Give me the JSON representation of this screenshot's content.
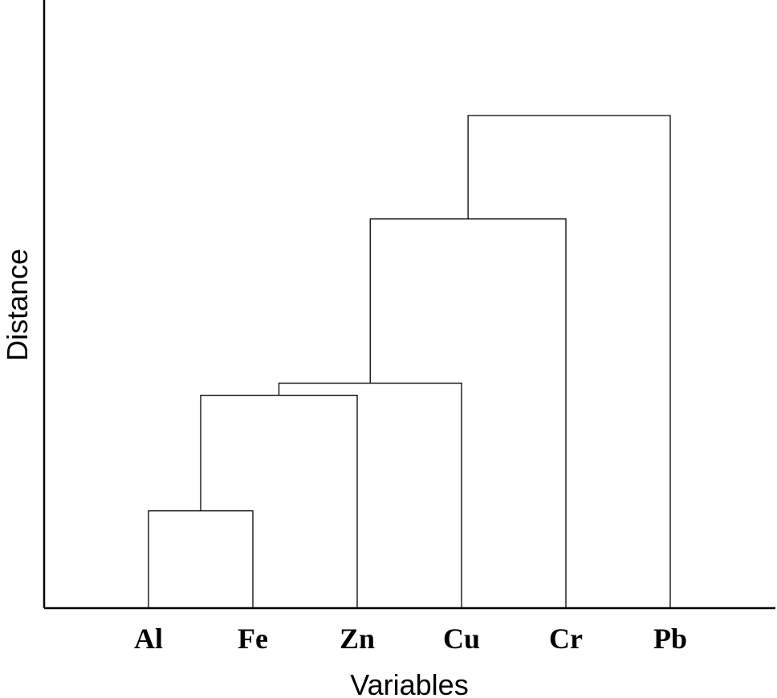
{
  "chart_data": {
    "type": "dendrogram",
    "xlabel": "Variables",
    "ylabel": "Distance",
    "leaves": [
      "Al",
      "Fe",
      "Zn",
      "Cu",
      "Cr",
      "Pb"
    ],
    "ylim": [
      0,
      1
    ],
    "merges": [
      {
        "left": "Al",
        "right": "Fe",
        "height": 0.16
      },
      {
        "left": "Al+Fe",
        "right": "Zn",
        "height": 0.35
      },
      {
        "left": "Al+Fe+Zn",
        "right": "Cu",
        "height": 0.37
      },
      {
        "left": "Al+Fe+Zn+Cu",
        "right": "Cr",
        "height": 0.64
      },
      {
        "left": "Al+Fe+Zn+Cu+Cr",
        "right": "Pb",
        "height": 0.81
      }
    ]
  }
}
